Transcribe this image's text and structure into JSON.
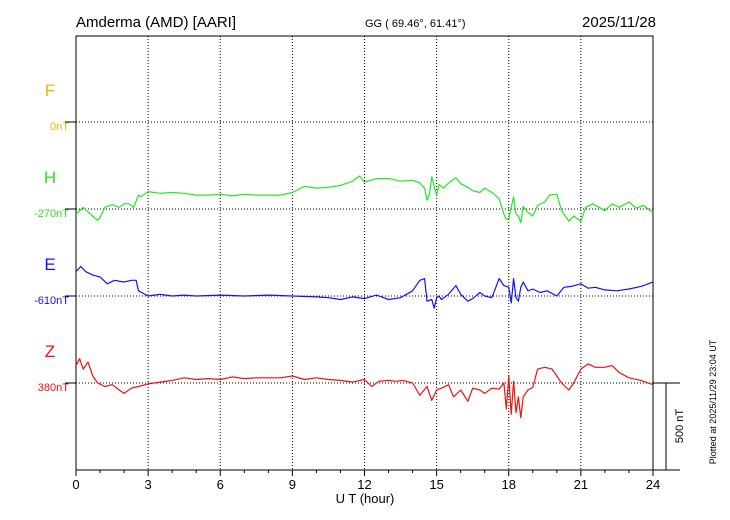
{
  "header": {
    "station": "Amderma (AMD)  [AARI]",
    "coords": "GG ( 69.46°,  61.41°)",
    "date": "2025/11/28"
  },
  "side_note": "Plotted at 2025/11/29 23:04 UT",
  "scale_label": "500 nT",
  "chart_data": {
    "type": "line",
    "title": "Amderma (AMD)  [AARI]",
    "xlabel": "U T (hour)",
    "ylabel": "",
    "xlim": [
      0,
      24
    ],
    "x_ticks": [
      "0",
      "3",
      "6",
      "9",
      "12",
      "15",
      "18",
      "21",
      "24"
    ],
    "grid": true,
    "scale_bar_nT": 500,
    "series": [
      {
        "name": "F",
        "baseline_label": "0nT",
        "color": "#f0b400",
        "x": [],
        "values": []
      },
      {
        "name": "H",
        "baseline_label": "-270nT",
        "color": "#22e822",
        "x": [
          0,
          0.3,
          0.6,
          0.9,
          1.0,
          1.2,
          1.5,
          1.8,
          2.0,
          2.2,
          2.4,
          2.6,
          2.7,
          3.0,
          3.5,
          4.0,
          4.5,
          5.0,
          5.5,
          6.0,
          6.5,
          7.0,
          7.5,
          8.0,
          8.5,
          9.0,
          9.5,
          10.0,
          10.5,
          11.0,
          11.5,
          11.8,
          12.0,
          12.5,
          13.0,
          13.5,
          14.0,
          14.3,
          14.5,
          14.6,
          14.7,
          14.8,
          14.9,
          15.0,
          15.1,
          15.3,
          15.5,
          15.8,
          16.0,
          16.3,
          16.5,
          16.8,
          17.0,
          17.3,
          17.6,
          17.8,
          17.9,
          18.0,
          18.1,
          18.2,
          18.3,
          18.4,
          18.5,
          18.6,
          18.8,
          19.0,
          19.2,
          19.5,
          19.7,
          20.0,
          20.2,
          20.5,
          20.7,
          21.0,
          21.2,
          21.5,
          22.0,
          22.3,
          22.6,
          23.0,
          23.3,
          23.6,
          24.0
        ],
        "values": [
          -300,
          -260,
          -300,
          -335,
          -320,
          -260,
          -245,
          -260,
          -240,
          -240,
          -260,
          -190,
          -200,
          -170,
          -180,
          -175,
          -180,
          -190,
          -190,
          -185,
          -195,
          -185,
          -190,
          -190,
          -190,
          -175,
          -140,
          -150,
          -145,
          -135,
          -110,
          -80,
          -115,
          -95,
          -95,
          -110,
          -105,
          -120,
          -150,
          -220,
          -185,
          -85,
          -140,
          -190,
          -130,
          -150,
          -120,
          -90,
          -125,
          -145,
          -165,
          -175,
          -150,
          -175,
          -210,
          -300,
          -330,
          -325,
          -260,
          -200,
          -300,
          -310,
          -350,
          -255,
          -290,
          -310,
          -250,
          -230,
          -190,
          -185,
          -280,
          -340,
          -310,
          -340,
          -260,
          -240,
          -280,
          -240,
          -260,
          -230,
          -265,
          -250,
          -290
        ]
      },
      {
        "name": "E",
        "baseline_label": "-610nT",
        "color": "#1010ff",
        "x": [
          0,
          0.2,
          0.4,
          0.7,
          1.0,
          1.3,
          1.6,
          2.0,
          2.3,
          2.5,
          2.6,
          2.8,
          3.0,
          3.5,
          4.0,
          4.5,
          5.0,
          6.0,
          7.0,
          8.0,
          9.0,
          10.0,
          10.5,
          11.0,
          11.5,
          12.0,
          12.5,
          13.0,
          13.5,
          14.0,
          14.3,
          14.5,
          14.6,
          14.8,
          14.9,
          15.0,
          15.1,
          15.2,
          15.5,
          15.8,
          16.0,
          16.3,
          16.5,
          16.8,
          17.0,
          17.3,
          17.6,
          17.8,
          18.0,
          18.1,
          18.2,
          18.3,
          18.4,
          18.5,
          18.6,
          18.8,
          19.0,
          19.3,
          19.6,
          20.0,
          20.3,
          20.6,
          21.0,
          21.3,
          21.6,
          22.0,
          22.5,
          23.0,
          23.5,
          24.0
        ],
        "values": [
          -470,
          -440,
          -470,
          -490,
          -500,
          -540,
          -520,
          -530,
          -520,
          -520,
          -580,
          -595,
          -610,
          -600,
          -610,
          -605,
          -610,
          -605,
          -610,
          -605,
          -610,
          -615,
          -620,
          -630,
          -615,
          -625,
          -605,
          -630,
          -620,
          -580,
          -520,
          -510,
          -640,
          -630,
          -680,
          -620,
          -610,
          -630,
          -600,
          -550,
          -600,
          -640,
          -625,
          -590,
          -610,
          -620,
          -510,
          -550,
          -560,
          -650,
          -510,
          -620,
          -640,
          -560,
          -530,
          -580,
          -570,
          -590,
          -580,
          -610,
          -560,
          -555,
          -540,
          -565,
          -560,
          -575,
          -580,
          -570,
          -555,
          -530
        ]
      },
      {
        "name": "Z",
        "baseline_label": "380nT",
        "color": "#ee1111",
        "x": [
          0,
          0.15,
          0.3,
          0.5,
          0.7,
          0.9,
          1.2,
          1.5,
          1.8,
          2.0,
          2.3,
          2.6,
          3.0,
          3.5,
          4.0,
          4.5,
          5.0,
          5.5,
          6.0,
          6.5,
          7.0,
          7.5,
          8.0,
          8.5,
          9.0,
          9.5,
          10.0,
          10.5,
          11.0,
          11.5,
          12.0,
          12.3,
          12.6,
          13.0,
          13.3,
          13.6,
          14.0,
          14.3,
          14.6,
          14.8,
          15.0,
          15.2,
          15.5,
          15.7,
          16.0,
          16.3,
          16.5,
          16.8,
          17.0,
          17.3,
          17.6,
          17.8,
          17.9,
          18.0,
          18.1,
          18.2,
          18.3,
          18.4,
          18.5,
          18.6,
          18.8,
          19.0,
          19.2,
          19.5,
          19.8,
          20.0,
          20.2,
          20.5,
          20.7,
          21.0,
          21.3,
          21.6,
          22.0,
          22.3,
          22.6,
          23.0,
          23.5,
          24.0
        ],
        "values": [
          480,
          520,
          460,
          500,
          420,
          380,
          360,
          370,
          340,
          320,
          350,
          360,
          375,
          385,
          395,
          410,
          400,
          405,
          400,
          415,
          405,
          410,
          410,
          410,
          420,
          400,
          410,
          400,
          395,
          385,
          400,
          360,
          390,
          395,
          390,
          395,
          380,
          310,
          360,
          280,
          340,
          350,
          370,
          300,
          340,
          275,
          350,
          340,
          320,
          350,
          345,
          380,
          230,
          420,
          200,
          390,
          210,
          300,
          180,
          300,
          340,
          355,
          460,
          470,
          460,
          420,
          380,
          340,
          380,
          460,
          490,
          470,
          470,
          480,
          440,
          410,
          395,
          370
        ]
      }
    ]
  }
}
